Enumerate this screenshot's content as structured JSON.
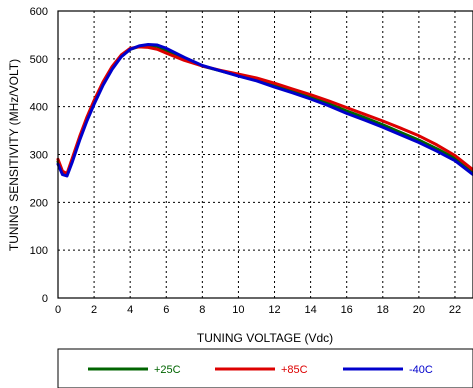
{
  "chart_data": {
    "type": "line",
    "title": "",
    "xlabel": "TUNING VOLTAGE (Vdc)",
    "ylabel": "TUNING SENSITIVITY (MHz/VOLT)",
    "xlim": [
      0,
      23
    ],
    "ylim": [
      0,
      600
    ],
    "x_ticks": [
      0,
      2,
      4,
      6,
      8,
      10,
      12,
      14,
      16,
      18,
      20,
      22
    ],
    "y_ticks": [
      0,
      100,
      200,
      300,
      400,
      500,
      600
    ],
    "grid": true,
    "grid_style": "dotted",
    "legend_position": "bottom",
    "series": [
      {
        "name": "+25C",
        "color": "#006400",
        "x": [
          0,
          0.25,
          0.5,
          0.8,
          1.2,
          1.6,
          2,
          2.5,
          3,
          3.5,
          4,
          4.5,
          5,
          5.5,
          6,
          7,
          8,
          9,
          10,
          11,
          12,
          13,
          14,
          15,
          16,
          17,
          18,
          19,
          20,
          21,
          22,
          23
        ],
        "y": [
          285,
          262,
          258,
          290,
          335,
          375,
          410,
          448,
          480,
          505,
          520,
          526,
          528,
          526,
          518,
          500,
          485,
          475,
          465,
          456,
          444,
          432,
          420,
          406,
          391,
          377,
          362,
          346,
          330,
          312,
          292,
          262
        ]
      },
      {
        "name": "+85C",
        "color": "#dd0000",
        "x": [
          0,
          0.25,
          0.5,
          0.8,
          1.2,
          1.6,
          2,
          2.5,
          3,
          3.5,
          4,
          4.5,
          5,
          5.5,
          6,
          7,
          8,
          9,
          10,
          11,
          12,
          13,
          14,
          15,
          16,
          17,
          18,
          19,
          20,
          21,
          22,
          23
        ],
        "y": [
          290,
          265,
          260,
          293,
          338,
          378,
          413,
          452,
          484,
          508,
          522,
          525,
          524,
          520,
          512,
          497,
          485,
          476,
          468,
          460,
          449,
          437,
          425,
          412,
          398,
          384,
          370,
          355,
          339,
          320,
          298,
          268
        ]
      },
      {
        "name": "-40C",
        "color": "#0000cc",
        "x": [
          0,
          0.25,
          0.5,
          0.8,
          1.2,
          1.6,
          2,
          2.5,
          3,
          3.5,
          4,
          4.5,
          5,
          5.5,
          6,
          7,
          8,
          9,
          10,
          11,
          12,
          13,
          14,
          15,
          16,
          17,
          18,
          19,
          20,
          21,
          22,
          23
        ],
        "y": [
          280,
          258,
          255,
          285,
          330,
          370,
          405,
          445,
          478,
          504,
          520,
          527,
          530,
          529,
          522,
          503,
          486,
          475,
          464,
          454,
          441,
          429,
          416,
          402,
          386,
          372,
          357,
          341,
          325,
          307,
          287,
          258
        ]
      }
    ]
  }
}
